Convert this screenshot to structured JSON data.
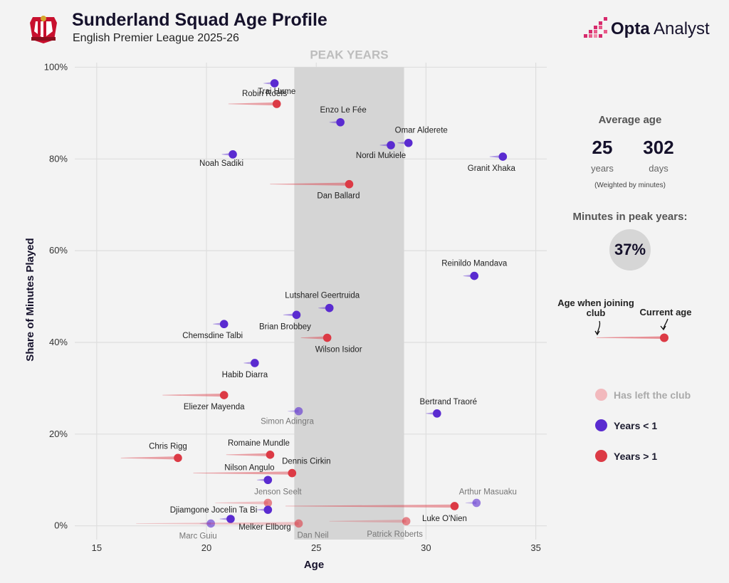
{
  "header": {
    "title": "Sunderland Squad Age Profile",
    "subtitle": "English Premier League 2025-26",
    "brand_bold": "Opta",
    "brand_rest": " Analyst"
  },
  "sidebar": {
    "avg_title": "Average age",
    "avg_years": "25",
    "avg_years_label": "years",
    "avg_days": "302",
    "avg_days_label": "days",
    "avg_note": "(Weighted by minutes)",
    "peak_title": "Minutes in peak years:",
    "peak_value": "37%",
    "key_join": "Age when joining club",
    "key_current": "Current age",
    "legend_left": "Has left the club",
    "legend_lt1": "Years < 1",
    "legend_gt1": "Years > 1"
  },
  "colors": {
    "purple": "#5a2bd0",
    "red": "#dc3a45",
    "peak_band": "#d5d5d5"
  },
  "chart_data": {
    "type": "scatter",
    "xlabel": "Age",
    "ylabel": "Share of Minutes Played",
    "xlim": [
      14,
      35.5
    ],
    "ylim": [
      -3,
      101
    ],
    "xticks": [
      15,
      20,
      25,
      30,
      35
    ],
    "yticks": [
      0,
      20,
      40,
      60,
      80,
      100
    ],
    "ytick_labels": [
      "0%",
      "20%",
      "40%",
      "60%",
      "80%",
      "100%"
    ],
    "peak_band": {
      "label": "PEAK YEARS",
      "from": 24,
      "to": 29
    },
    "points": [
      {
        "name": "Trai Hume",
        "age": 23.2,
        "join": 21.0,
        "share": 92.0,
        "group": "gt1",
        "left": false
      },
      {
        "name": "Robin Roefs",
        "age": 23.1,
        "join": 22.6,
        "share": 96.5,
        "group": "lt1",
        "left": false
      },
      {
        "name": "Enzo Le Fée",
        "age": 26.1,
        "join": 25.6,
        "share": 88.0,
        "group": "lt1",
        "left": false
      },
      {
        "name": "Omar Alderete",
        "age": 29.2,
        "join": 28.7,
        "share": 83.5,
        "group": "lt1",
        "left": false
      },
      {
        "name": "Nordi Mukiele",
        "age": 28.4,
        "join": 27.9,
        "share": 83.0,
        "group": "lt1",
        "left": false
      },
      {
        "name": "Noah Sadiki",
        "age": 21.2,
        "join": 20.7,
        "share": 81.0,
        "group": "lt1",
        "left": false
      },
      {
        "name": "Granit Xhaka",
        "age": 33.5,
        "join": 32.9,
        "share": 80.5,
        "group": "lt1",
        "left": false
      },
      {
        "name": "Dan Ballard",
        "age": 26.5,
        "join": 22.9,
        "share": 74.5,
        "group": "gt1",
        "left": false
      },
      {
        "name": "Reinildo Mandava",
        "age": 32.2,
        "join": 31.7,
        "share": 54.5,
        "group": "lt1",
        "left": false
      },
      {
        "name": "Lutsharel Geertruida",
        "age": 25.6,
        "join": 25.1,
        "share": 47.5,
        "group": "lt1",
        "left": false
      },
      {
        "name": "Brian Brobbey",
        "age": 24.1,
        "join": 23.5,
        "share": 46.0,
        "group": "lt1",
        "left": false
      },
      {
        "name": "Chemsdine Talbi",
        "age": 20.8,
        "join": 20.3,
        "share": 44.0,
        "group": "lt1",
        "left": false
      },
      {
        "name": "Wilson Isidor",
        "age": 25.5,
        "join": 24.3,
        "share": 41.0,
        "group": "gt1",
        "left": false
      },
      {
        "name": "Habib Diarra",
        "age": 22.2,
        "join": 21.7,
        "share": 35.5,
        "group": "lt1",
        "left": false
      },
      {
        "name": "Eliezer Mayenda",
        "age": 20.8,
        "join": 18.0,
        "share": 28.5,
        "group": "gt1",
        "left": false
      },
      {
        "name": "Simon Adingra",
        "age": 24.2,
        "join": 23.7,
        "share": 25.0,
        "group": "lt1",
        "left": true
      },
      {
        "name": "Bertrand Traoré",
        "age": 30.5,
        "join": 30.0,
        "share": 24.5,
        "group": "lt1",
        "left": false
      },
      {
        "name": "Chris Rigg",
        "age": 18.7,
        "join": 16.1,
        "share": 14.8,
        "group": "gt1",
        "left": false
      },
      {
        "name": "Romaine Mundle",
        "age": 22.9,
        "join": 20.9,
        "share": 15.5,
        "group": "gt1",
        "left": false
      },
      {
        "name": "Dennis Cirkin",
        "age": 23.9,
        "join": 19.4,
        "share": 11.5,
        "group": "gt1",
        "left": false
      },
      {
        "name": "Nilson Angulo",
        "age": 22.8,
        "join": 22.3,
        "share": 10.0,
        "group": "lt1",
        "left": false
      },
      {
        "name": "Jenson Seelt",
        "age": 22.8,
        "join": 20.4,
        "share": 5.0,
        "group": "gt1",
        "left": true
      },
      {
        "name": "Arthur Masuaku",
        "age": 32.3,
        "join": 31.8,
        "share": 5.0,
        "group": "lt1",
        "left": true
      },
      {
        "name": "Luke O'Nien",
        "age": 31.3,
        "join": 23.6,
        "share": 4.3,
        "group": "gt1",
        "left": false
      },
      {
        "name": "Djiamgone Jocelin Ta Bi",
        "age": 22.8,
        "join": 22.3,
        "share": 3.5,
        "group": "lt1",
        "left": false
      },
      {
        "name": "Melker Ellborg",
        "age": 21.1,
        "join": 20.6,
        "share": 1.5,
        "group": "lt1",
        "left": false
      },
      {
        "name": "Marc Guiu",
        "age": 20.2,
        "join": 19.7,
        "share": 0.5,
        "group": "lt1",
        "left": true
      },
      {
        "name": "Dan Neil",
        "age": 24.2,
        "join": 16.8,
        "share": 0.5,
        "group": "gt1",
        "left": true
      },
      {
        "name": "Patrick Roberts",
        "age": 29.1,
        "join": 25.6,
        "share": 1.0,
        "group": "gt1",
        "left": true
      }
    ]
  }
}
